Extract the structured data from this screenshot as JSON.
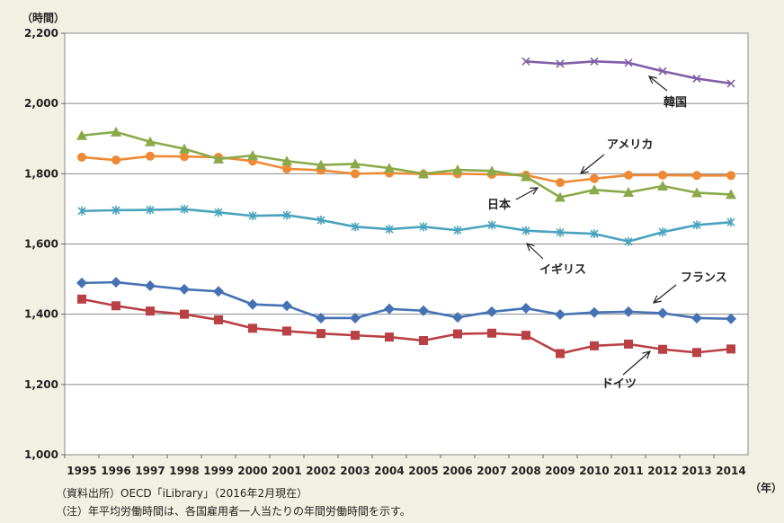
{
  "chart_data": {
    "type": "line",
    "title": "",
    "ylabel": "（時間）",
    "xlabel": "（年）",
    "ylim": [
      1000,
      2200
    ],
    "yticks": [
      1000,
      1200,
      1400,
      1600,
      1800,
      2000,
      2200
    ],
    "ytick_labels": [
      "1,000",
      "1,200",
      "1,400",
      "1,600",
      "1,800",
      "2,000",
      "2,200"
    ],
    "categories": [
      "1995",
      "1996",
      "1997",
      "1998",
      "1999",
      "2000",
      "2001",
      "2002",
      "2003",
      "2004",
      "2005",
      "2006",
      "2007",
      "2008",
      "2009",
      "2010",
      "2011",
      "2012",
      "2013",
      "2014"
    ],
    "grid": "horizontal",
    "legend": "direct labels with arrows",
    "series": [
      {
        "name": "韓国",
        "color": "#7f5fa6",
        "marker": "x",
        "values": [
          null,
          null,
          null,
          null,
          null,
          null,
          null,
          null,
          null,
          null,
          null,
          null,
          null,
          2120,
          2113,
          2120,
          2116,
          2092,
          2071,
          2057
        ]
      },
      {
        "name": "アメリカ",
        "color": "#ee8a36",
        "marker": "circle",
        "values": [
          1847,
          1839,
          1850,
          1849,
          1847,
          1836,
          1814,
          1810,
          1800,
          1802,
          1799,
          1800,
          1798,
          1796,
          1775,
          1786,
          1796,
          1796,
          1795,
          1795
        ]
      },
      {
        "name": "日本",
        "color": "#8aaa4a",
        "marker": "triangle",
        "values": [
          1909,
          1919,
          1891,
          1871,
          1842,
          1852,
          1836,
          1825,
          1828,
          1816,
          1800,
          1811,
          1808,
          1792,
          1733,
          1754,
          1747,
          1765,
          1746,
          1741
        ]
      },
      {
        "name": "イギリス",
        "color": "#4aa3bd",
        "marker": "asterisk",
        "values": [
          1694,
          1696,
          1697,
          1699,
          1690,
          1680,
          1682,
          1668,
          1649,
          1642,
          1649,
          1639,
          1654,
          1638,
          1633,
          1629,
          1607,
          1634,
          1654,
          1662
        ]
      },
      {
        "name": "フランス",
        "color": "#4472b4",
        "marker": "diamond",
        "values": [
          1489,
          1491,
          1481,
          1471,
          1465,
          1428,
          1424,
          1389,
          1389,
          1415,
          1410,
          1391,
          1407,
          1417,
          1399,
          1405,
          1407,
          1403,
          1389,
          1387
        ]
      },
      {
        "name": "ドイツ",
        "color": "#b94044",
        "marker": "square",
        "values": [
          1443,
          1424,
          1409,
          1400,
          1384,
          1360,
          1352,
          1345,
          1340,
          1335,
          1325,
          1344,
          1346,
          1340,
          1288,
          1310,
          1315,
          1300,
          1291,
          1301
        ]
      }
    ],
    "annotations": [
      {
        "text": "韓国",
        "series": "韓国"
      },
      {
        "text": "アメリカ",
        "series": "アメリカ"
      },
      {
        "text": "日本",
        "series": "日本"
      },
      {
        "text": "イギリス",
        "series": "イギリス"
      },
      {
        "text": "フランス",
        "series": "フランス"
      },
      {
        "text": "ドイツ",
        "series": "ドイツ"
      }
    ]
  },
  "notes": {
    "source": "（資料出所）OECD「iLibrary」（2016年2月現在）",
    "note": "（注）年平均労働時間は、各国雇用者一人当たりの年間労働時間を示す。"
  }
}
